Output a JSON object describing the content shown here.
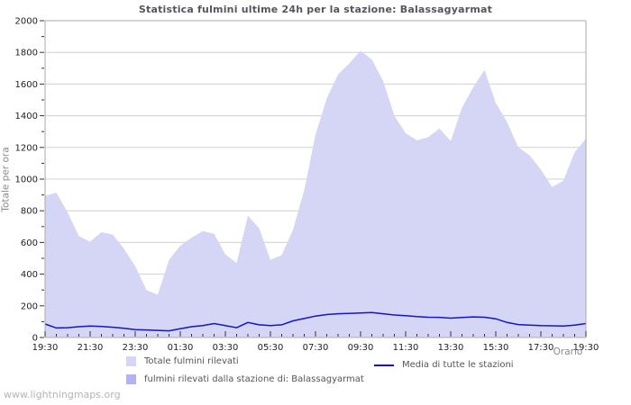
{
  "page": {
    "watermark": "www.lightningmaps.org"
  },
  "chart_data": {
    "type": "area",
    "title": "Statistica fulmini ultime 24h per la stazione: Balassagyarmat",
    "xlabel": "Orario",
    "ylabel": "Totale per ora",
    "ylim": [
      0,
      2000
    ],
    "y_major_step": 200,
    "y_minor_step": 100,
    "y_tick_labels": [
      "0",
      "200",
      "400",
      "600",
      "800",
      "1000",
      "1200",
      "1400",
      "1600",
      "1800",
      "2000"
    ],
    "x_span_hours": 24,
    "x_major_step_hours": 2,
    "x_minor_step_hours": 0.5,
    "x_tick_labels": [
      "19:30",
      "21:30",
      "23:30",
      "01:30",
      "03:30",
      "05:30",
      "07:30",
      "09:30",
      "11:30",
      "13:30",
      "15:30",
      "17:30",
      "19:30"
    ],
    "grid": "horizontal",
    "legend_position": "bottom",
    "colors": {
      "grid": "#d0d0d0",
      "plot_border": "#aaaaaa",
      "tick": "#333333",
      "tick_label": "#222222",
      "title": "#55555f",
      "axis_title": "#8a8a8a"
    },
    "x": [
      "19:30",
      "20:00",
      "20:30",
      "21:00",
      "21:30",
      "22:00",
      "22:30",
      "23:00",
      "23:30",
      "00:00",
      "00:30",
      "01:00",
      "01:30",
      "02:00",
      "02:30",
      "03:00",
      "03:30",
      "04:00",
      "04:30",
      "05:00",
      "05:30",
      "06:00",
      "06:30",
      "07:00",
      "07:30",
      "08:00",
      "08:30",
      "09:00",
      "09:30",
      "10:00",
      "10:30",
      "11:00",
      "11:30",
      "12:00",
      "12:30",
      "13:00",
      "13:30",
      "14:00",
      "14:30",
      "15:00",
      "15:30",
      "16:00",
      "16:30",
      "17:00",
      "17:30",
      "18:00",
      "18:30",
      "19:00",
      "19:30"
    ],
    "series": [
      {
        "name": "Totale fulmini rilevati",
        "type": "area",
        "color": "#d5d5f6",
        "values": [
          895,
          915,
          790,
          640,
          605,
          665,
          650,
          560,
          450,
          300,
          270,
          490,
          580,
          630,
          672,
          655,
          525,
          470,
          770,
          690,
          490,
          520,
          680,
          930,
          1280,
          1510,
          1660,
          1730,
          1810,
          1755,
          1620,
          1400,
          1290,
          1245,
          1265,
          1320,
          1240,
          1450,
          1580,
          1690,
          1480,
          1360,
          1200,
          1150,
          1060,
          950,
          990,
          1170,
          1255
        ]
      },
      {
        "name": "fulmini rilevati dalla stazione di: Balassagyarmat",
        "type": "area",
        "color": "#b3b3f0",
        "values": [
          0,
          0,
          0,
          0,
          0,
          0,
          0,
          0,
          0,
          0,
          0,
          0,
          0,
          0,
          0,
          0,
          0,
          0,
          0,
          0,
          0,
          0,
          0,
          0,
          0,
          0,
          0,
          0,
          0,
          0,
          0,
          0,
          0,
          0,
          0,
          0,
          0,
          0,
          0,
          0,
          0,
          0,
          0,
          0,
          0,
          0,
          0,
          0,
          0
        ]
      },
      {
        "name": "Media di tutte le stazioni",
        "type": "line",
        "color": "#1414cd",
        "values": [
          85,
          60,
          62,
          68,
          72,
          70,
          65,
          58,
          50,
          48,
          45,
          42,
          55,
          68,
          75,
          88,
          75,
          62,
          95,
          80,
          75,
          80,
          105,
          120,
          135,
          145,
          150,
          152,
          155,
          158,
          150,
          142,
          138,
          132,
          128,
          127,
          122,
          126,
          130,
          128,
          118,
          95,
          82,
          78,
          75,
          74,
          72,
          78,
          88
        ]
      }
    ]
  },
  "legend": {
    "items": [
      {
        "label": "Totale fulmini rilevati",
        "swatch_color": "#d5d5f6",
        "kind": "area"
      },
      {
        "label": "fulmini rilevati dalla stazione di: Balassagyarmat",
        "swatch_color": "#b3b3f0",
        "kind": "area"
      },
      {
        "label": "Media di tutte le stazioni",
        "swatch_color": "#1414cd",
        "kind": "line"
      }
    ]
  }
}
